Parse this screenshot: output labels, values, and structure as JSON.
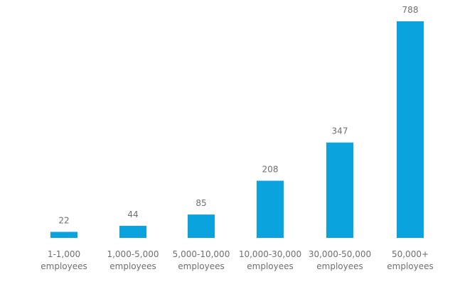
{
  "chart_data": {
    "type": "bar",
    "title": "",
    "xlabel": "",
    "ylabel": "",
    "categories": [
      [
        "1-1,000",
        "employees"
      ],
      [
        "1,000-5,000",
        "employees"
      ],
      [
        "5,000-10,000",
        "employees"
      ],
      [
        "10,000-30,000",
        "employees"
      ],
      [
        "30,000-50,000",
        "employees"
      ],
      [
        "50,000+",
        "employees"
      ]
    ],
    "values": [
      22,
      44,
      85,
      208,
      347,
      788
    ],
    "value_labels": [
      "22",
      "44",
      "85",
      "208",
      "347",
      "788"
    ],
    "ylim": [
      0,
      788
    ],
    "grid": false,
    "legend": "none",
    "colors": {
      "bar": "#0aa3dd",
      "value_label": "#6f6f6f",
      "category_label": "#6f6f6f",
      "background": "#ffffff"
    }
  }
}
